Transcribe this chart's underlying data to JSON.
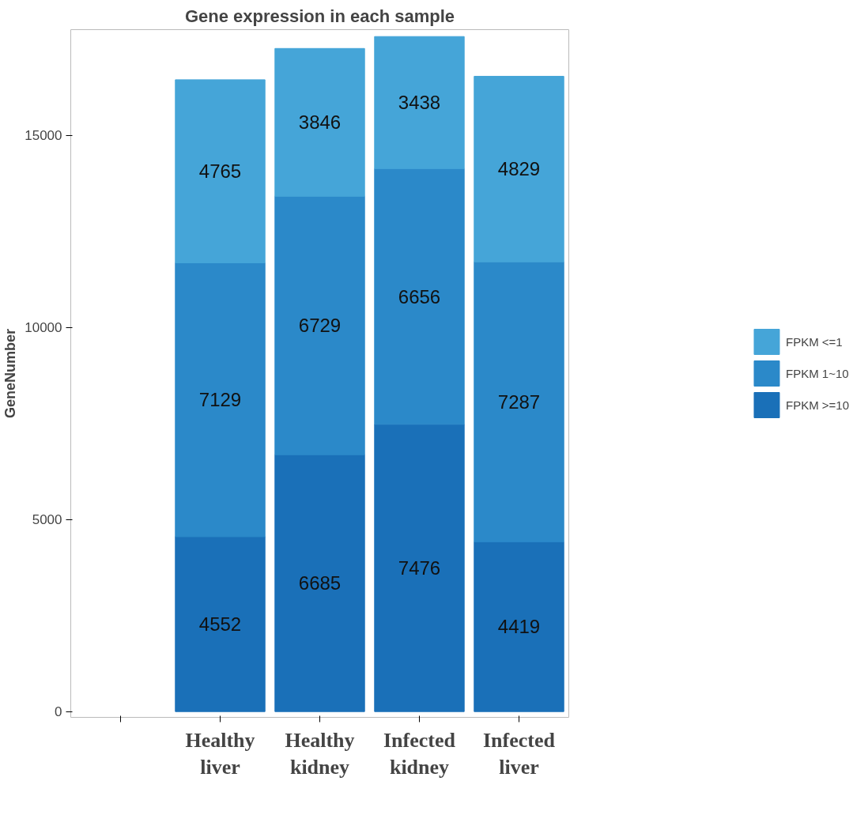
{
  "chart_data": {
    "type": "bar",
    "stacked": true,
    "title": "Gene expression in each sample",
    "ylabel": "GeneNumber",
    "categories": [
      null,
      "Healthy liver",
      "Healthy kidney",
      "Infected kidney",
      "Infected liver"
    ],
    "series": [
      {
        "name": "FPKM >=10",
        "color": "#1a70b8",
        "values": [
          null,
          4552,
          6685,
          7476,
          4419
        ]
      },
      {
        "name": "FPKM 1~10",
        "color": "#2b89c9",
        "values": [
          null,
          7129,
          6729,
          6656,
          7287
        ]
      },
      {
        "name": "FPKM <=1",
        "color": "#45a5d8",
        "values": [
          null,
          4765,
          3846,
          3438,
          4829
        ]
      }
    ],
    "ylim": [
      -150,
      17750
    ],
    "yticks": [
      0,
      5000,
      10000,
      15000
    ],
    "grid": false,
    "legend": "right",
    "data_labels": true
  }
}
